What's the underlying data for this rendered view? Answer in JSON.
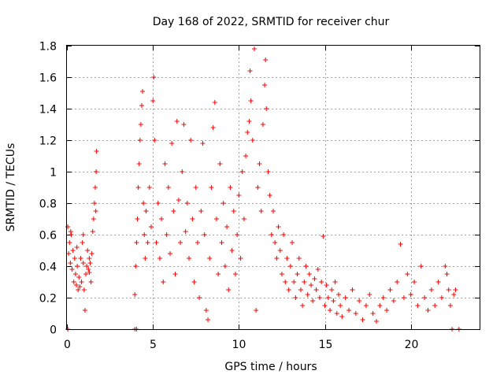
{
  "chart_data": {
    "type": "scatter",
    "title": "Day 168 of 2022, SRMTID for receiver chur",
    "xlabel": "GPS time / hours",
    "ylabel": "SRMTID / TECUs",
    "xlim": [
      0,
      24
    ],
    "ylim": [
      0,
      1.8
    ],
    "xticks": [
      0,
      5,
      10,
      15,
      20
    ],
    "xtick_labels": [
      "0",
      "5",
      "10",
      "15",
      "20"
    ],
    "yticks": [
      0,
      0.2,
      0.4,
      0.6,
      0.8,
      1.0,
      1.2,
      1.4,
      1.6,
      1.8
    ],
    "ytick_labels": [
      "0",
      "0.2",
      "0.4",
      "0.6",
      "0.8",
      "1",
      "1.2",
      "1.4",
      "1.6",
      "1.8"
    ],
    "grid": true,
    "marker": "+",
    "color": "#ff0000",
    "series": [
      {
        "name": "SRMTID",
        "points": [
          [
            0.05,
            0.65
          ],
          [
            0.1,
            0.48
          ],
          [
            0.15,
            0.55
          ],
          [
            0.2,
            0.42
          ],
          [
            0.25,
            0.6
          ],
          [
            0.3,
            0.38
          ],
          [
            0.35,
            0.5
          ],
          [
            0.4,
            0.3
          ],
          [
            0.45,
            0.45
          ],
          [
            0.5,
            0.35
          ],
          [
            0.55,
            0.28
          ],
          [
            0.6,
            0.4
          ],
          [
            0.65,
            0.25
          ],
          [
            0.7,
            0.33
          ],
          [
            0.75,
            0.27
          ],
          [
            0.8,
            0.45
          ],
          [
            0.85,
            0.3
          ],
          [
            0.9,
            0.55
          ],
          [
            0.95,
            0.6
          ],
          [
            1.0,
            0.25
          ],
          [
            1.05,
            0.12
          ],
          [
            1.1,
            0.35
          ],
          [
            1.15,
            0.4
          ],
          [
            1.2,
            0.5
          ],
          [
            1.25,
            0.38
          ],
          [
            1.3,
            0.45
          ],
          [
            1.35,
            0.42
          ],
          [
            1.4,
            0.3
          ],
          [
            1.45,
            0.48
          ],
          [
            1.5,
            0.62
          ],
          [
            1.55,
            0.7
          ],
          [
            1.6,
            0.8
          ],
          [
            1.65,
            0.9
          ],
          [
            1.7,
            1.0
          ],
          [
            1.72,
            1.13
          ],
          [
            1.68,
            0.75
          ],
          [
            0.22,
            0.62
          ],
          [
            0.58,
            0.52
          ],
          [
            0.95,
            0.42
          ],
          [
            1.3,
            0.36
          ],
          [
            3.95,
            0.22
          ],
          [
            4.0,
            0.4
          ],
          [
            4.05,
            0.55
          ],
          [
            4.1,
            0.7
          ],
          [
            4.15,
            0.9
          ],
          [
            4.2,
            1.05
          ],
          [
            4.25,
            1.2
          ],
          [
            4.3,
            1.3
          ],
          [
            4.35,
            1.42
          ],
          [
            4.4,
            1.51
          ],
          [
            4.45,
            0.8
          ],
          [
            4.5,
            0.6
          ],
          [
            4.55,
            0.45
          ],
          [
            4.6,
            0.75
          ],
          [
            4.7,
            0.55
          ],
          [
            4.8,
            0.9
          ],
          [
            4.9,
            0.65
          ],
          [
            5.0,
            1.45
          ],
          [
            5.05,
            1.6
          ],
          [
            5.1,
            1.2
          ],
          [
            5.2,
            0.55
          ],
          [
            5.3,
            0.8
          ],
          [
            5.4,
            0.45
          ],
          [
            5.5,
            0.7
          ],
          [
            5.6,
            0.3
          ],
          [
            5.7,
            1.05
          ],
          [
            5.8,
            0.6
          ],
          [
            5.9,
            0.9
          ],
          [
            6.0,
            0.48
          ],
          [
            6.1,
            1.18
          ],
          [
            6.2,
            0.75
          ],
          [
            6.3,
            0.35
          ],
          [
            6.4,
            1.32
          ],
          [
            6.5,
            0.82
          ],
          [
            6.6,
            0.55
          ],
          [
            6.7,
            1.0
          ],
          [
            6.8,
            1.3
          ],
          [
            6.9,
            0.62
          ],
          [
            7.0,
            0.8
          ],
          [
            7.1,
            0.45
          ],
          [
            7.2,
            1.2
          ],
          [
            7.3,
            0.7
          ],
          [
            7.4,
            0.3
          ],
          [
            7.5,
            0.9
          ],
          [
            7.6,
            0.55
          ],
          [
            7.7,
            0.2
          ],
          [
            7.8,
            0.75
          ],
          [
            7.9,
            1.18
          ],
          [
            8.0,
            0.6
          ],
          [
            8.1,
            0.12
          ],
          [
            8.2,
            0.06
          ],
          [
            8.3,
            0.45
          ],
          [
            8.4,
            0.9
          ],
          [
            8.5,
            1.28
          ],
          [
            8.6,
            1.44
          ],
          [
            8.7,
            0.7
          ],
          [
            8.8,
            0.35
          ],
          [
            8.9,
            1.05
          ],
          [
            9.0,
            0.55
          ],
          [
            9.1,
            0.8
          ],
          [
            9.2,
            0.4
          ],
          [
            9.3,
            0.65
          ],
          [
            9.4,
            0.25
          ],
          [
            9.5,
            0.9
          ],
          [
            9.6,
            0.5
          ],
          [
            9.7,
            0.75
          ],
          [
            9.8,
            0.35
          ],
          [
            9.9,
            0.6
          ],
          [
            10.0,
            0.85
          ],
          [
            10.1,
            0.45
          ],
          [
            10.2,
            1.0
          ],
          [
            10.3,
            0.7
          ],
          [
            10.4,
            1.1
          ],
          [
            10.5,
            1.25
          ],
          [
            10.6,
            1.32
          ],
          [
            10.65,
            1.64
          ],
          [
            10.7,
            1.45
          ],
          [
            10.8,
            1.2
          ],
          [
            10.9,
            1.78
          ],
          [
            11.0,
            0.12
          ],
          [
            11.1,
            0.9
          ],
          [
            11.2,
            1.05
          ],
          [
            11.3,
            0.75
          ],
          [
            11.4,
            1.3
          ],
          [
            11.5,
            1.55
          ],
          [
            11.55,
            1.71
          ],
          [
            11.6,
            1.4
          ],
          [
            11.7,
            1.0
          ],
          [
            11.8,
            0.85
          ],
          [
            11.9,
            0.6
          ],
          [
            12.0,
            0.75
          ],
          [
            12.1,
            0.55
          ],
          [
            12.2,
            0.45
          ],
          [
            12.3,
            0.65
          ],
          [
            12.4,
            0.5
          ],
          [
            12.5,
            0.35
          ],
          [
            12.6,
            0.6
          ],
          [
            12.7,
            0.3
          ],
          [
            12.8,
            0.45
          ],
          [
            12.9,
            0.25
          ],
          [
            13.0,
            0.4
          ],
          [
            13.1,
            0.55
          ],
          [
            13.2,
            0.3
          ],
          [
            13.3,
            0.2
          ],
          [
            13.4,
            0.35
          ],
          [
            13.5,
            0.45
          ],
          [
            13.6,
            0.25
          ],
          [
            13.7,
            0.15
          ],
          [
            13.8,
            0.3
          ],
          [
            13.9,
            0.4
          ],
          [
            14.0,
            0.22
          ],
          [
            14.1,
            0.35
          ],
          [
            14.2,
            0.28
          ],
          [
            14.3,
            0.18
          ],
          [
            14.4,
            0.32
          ],
          [
            14.5,
            0.25
          ],
          [
            14.6,
            0.38
          ],
          [
            14.7,
            0.2
          ],
          [
            14.8,
            0.3
          ],
          [
            14.9,
            0.59
          ],
          [
            15.0,
            0.15
          ],
          [
            15.1,
            0.28
          ],
          [
            15.2,
            0.2
          ],
          [
            15.3,
            0.12
          ],
          [
            15.4,
            0.25
          ],
          [
            15.5,
            0.18
          ],
          [
            15.6,
            0.3
          ],
          [
            15.7,
            0.1
          ],
          [
            15.8,
            0.22
          ],
          [
            15.9,
            0.15
          ],
          [
            16.0,
            0.08
          ],
          [
            16.2,
            0.2
          ],
          [
            16.4,
            0.12
          ],
          [
            16.6,
            0.25
          ],
          [
            16.8,
            0.1
          ],
          [
            17.0,
            0.18
          ],
          [
            17.2,
            0.06
          ],
          [
            17.4,
            0.15
          ],
          [
            17.6,
            0.22
          ],
          [
            17.8,
            0.1
          ],
          [
            18.0,
            0.05
          ],
          [
            18.2,
            0.15
          ],
          [
            18.4,
            0.2
          ],
          [
            18.6,
            0.12
          ],
          [
            18.8,
            0.25
          ],
          [
            19.0,
            0.18
          ],
          [
            19.2,
            0.3
          ],
          [
            19.4,
            0.54
          ],
          [
            19.6,
            0.2
          ],
          [
            19.8,
            0.35
          ],
          [
            20.0,
            0.22
          ],
          [
            20.2,
            0.3
          ],
          [
            20.4,
            0.15
          ],
          [
            20.6,
            0.4
          ],
          [
            20.8,
            0.2
          ],
          [
            21.0,
            0.12
          ],
          [
            21.2,
            0.25
          ],
          [
            21.4,
            0.15
          ],
          [
            21.6,
            0.3
          ],
          [
            21.8,
            0.2
          ],
          [
            22.0,
            0.4
          ],
          [
            22.1,
            0.35
          ],
          [
            22.2,
            0.25
          ],
          [
            22.3,
            0.15
          ],
          [
            22.5,
            0.22
          ],
          [
            22.6,
            0.25
          ],
          [
            0.05,
            0.0
          ],
          [
            3.95,
            0.0
          ],
          [
            4.05,
            0.0
          ],
          [
            22.4,
            0.0
          ],
          [
            22.8,
            0.0
          ]
        ]
      }
    ]
  }
}
